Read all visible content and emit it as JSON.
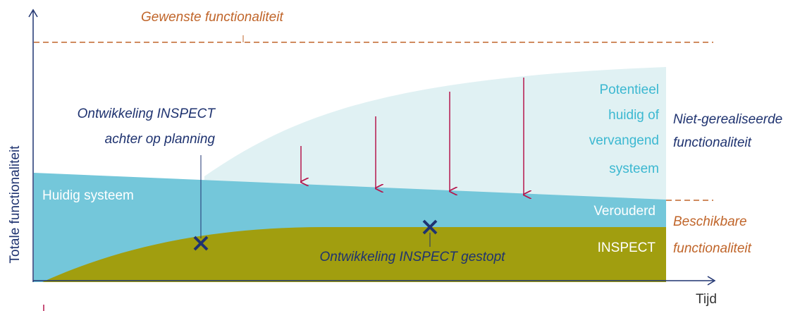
{
  "title": "Gewenste functionaliteit",
  "axes": {
    "y_label": "Totale functionaliteit",
    "x_label": "Tijd"
  },
  "regions": {
    "current": "Huidig systeem",
    "potential": [
      "Potentieel",
      "huidig of",
      "vervangend",
      "systeem"
    ],
    "outdated": "Verouderd",
    "inspect": "INSPECT"
  },
  "side_labels": {
    "unrealized": [
      "Niet-gerealiseerde",
      "functionaliteit"
    ],
    "available": [
      "Beschikbare",
      "functionaliteit"
    ]
  },
  "annotations": {
    "behind": [
      "Ontwikkeling INSPECT",
      "achter op planning"
    ],
    "stopped": "Ontwikkeling INSPECT gestopt"
  }
}
